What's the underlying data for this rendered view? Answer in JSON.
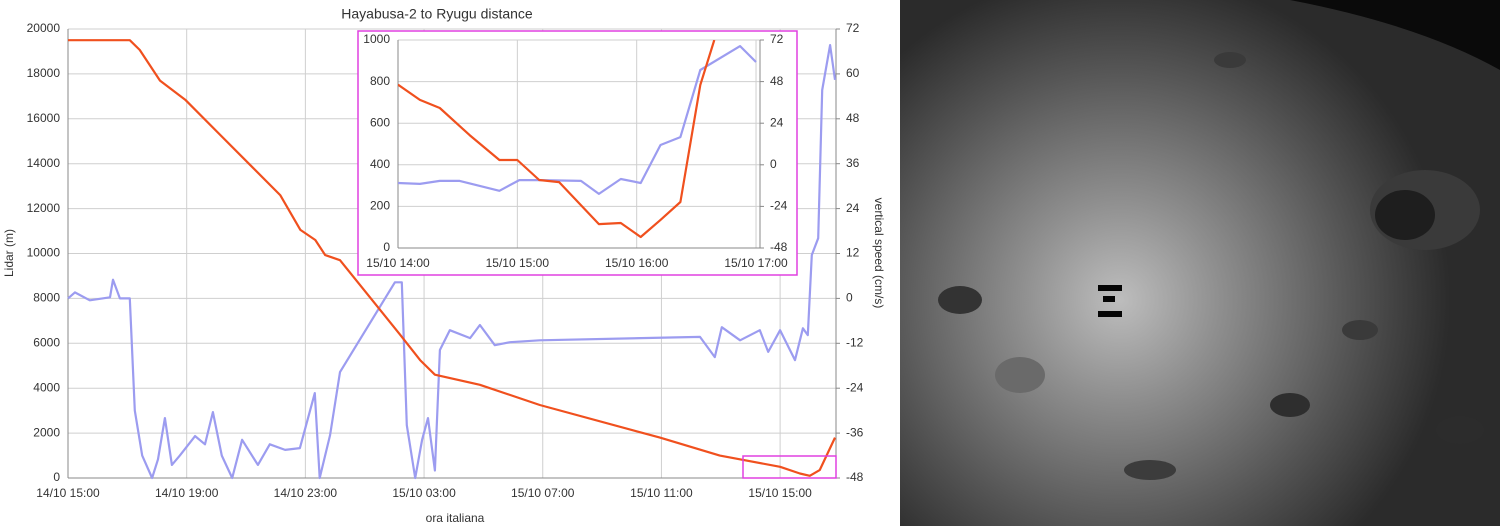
{
  "chart_data": [
    {
      "type": "line",
      "title": "Hayabusa-2 to Ryugu distance",
      "xlabel": "ora italiana",
      "ylabel": "Lidar (m)",
      "y2label": "vertical speed (cm/s)",
      "xlim": [
        "14/10 15:00",
        "15/10 16:53"
      ],
      "xticks": [
        "14/10 15:00",
        "14/10 19:00",
        "14/10 23:00",
        "15/10 03:00",
        "15/10 07:00",
        "15/10 11:00",
        "15/10 15:00"
      ],
      "ylim": [
        0,
        20000
      ],
      "yticks": [
        0,
        2000,
        4000,
        6000,
        8000,
        10000,
        12000,
        14000,
        16000,
        18000,
        20000
      ],
      "y2lim": [
        -48,
        72
      ],
      "y2ticks": [
        -48,
        -36,
        -24,
        -12,
        0,
        12,
        24,
        36,
        48,
        60,
        72
      ],
      "grid": true,
      "series": [
        {
          "color": "#f0501e",
          "x": [
            "14/10 15:00",
            "14/10 17:05",
            "14/10 17:25",
            "14/10 18:06",
            "14/10 18:57",
            "14/10 20:07",
            "14/10 21:08",
            "14/10 22:09",
            "14/10 22:50",
            "14/10 23:20",
            "14/10 23:40",
            "15/10 00:10",
            "15/10 02:11",
            "15/10 02:52",
            "15/10 03:22",
            "15/10 04:53",
            "15/10 06:54",
            "15/10 10:57",
            "15/10 12:58",
            "15/10 15:00",
            "15/10 15:40",
            "15/10 16:00",
            "15/10 16:20",
            "15/10 16:51"
          ],
          "values": [
            19500,
            19500,
            19070,
            17700,
            16850,
            15300,
            13950,
            12600,
            11050,
            10600,
            9930,
            9700,
            6400,
            5250,
            4600,
            4150,
            3250,
            1800,
            1000,
            500,
            200,
            100,
            350,
            1800
          ]
        },
        {
          "color": "#9c9cf0",
          "axis": "y2",
          "x": [
            "14/10 15:00",
            "14/10 15:14",
            "14/10 15:44",
            "14/10 16:25",
            "14/10 16:31",
            "14/10 16:45",
            "14/10 17:05",
            "14/10 17:15",
            "14/10 17:30",
            "14/10 17:50",
            "14/10 18:02",
            "14/10 18:16",
            "14/10 18:30",
            "14/10 18:46",
            "14/10 19:17",
            "14/10 19:37",
            "14/10 19:53",
            "14/10 20:11",
            "14/10 20:32",
            "14/10 20:52",
            "14/10 21:24",
            "14/10 21:48",
            "14/10 22:19",
            "14/10 22:49",
            "14/10 23:19",
            "14/10 23:29",
            "14/10 23:50",
            "15/10 00:10",
            "15/10 02:01",
            "15/10 02:15",
            "15/10 02:25",
            "15/10 02:42",
            "15/10 02:56",
            "15/10 03:08",
            "15/10 03:22",
            "15/10 03:32",
            "15/10 03:52",
            "15/10 04:33",
            "15/10 04:53",
            "15/10 05:23",
            "15/10 05:54",
            "15/10 06:54",
            "15/10 12:18",
            "15/10 12:48",
            "15/10 13:02",
            "15/10 13:39",
            "15/10 14:19",
            "15/10 14:36",
            "15/10 15:00",
            "15/10 15:30",
            "15/10 15:46",
            "15/10 15:56",
            "15/10 16:04",
            "15/10 16:17",
            "15/10 16:25",
            "15/10 16:41",
            "15/10 16:51"
          ],
          "values": [
            0,
            1.6,
            -0.5,
            0.3,
            5,
            0,
            0,
            -30,
            -42,
            -48,
            -43,
            -32,
            -44.5,
            -42,
            -36.8,
            -39,
            -30.4,
            -42,
            -48,
            -37.8,
            -44.5,
            -39,
            -40.5,
            -40,
            -25.3,
            -48,
            -36.5,
            -19.7,
            4.3,
            4.3,
            -33.9,
            -48,
            -37.8,
            -32,
            -46,
            -13.8,
            -8.5,
            -10.6,
            -7.1,
            -12.5,
            -11.7,
            -11.2,
            -10.3,
            -15.7,
            -7.7,
            -11.2,
            -8.5,
            -14.3,
            -8.5,
            -16.5,
            -8,
            -9.8,
            11.6,
            16.1,
            55.7,
            67.7,
            58.4
          ]
        }
      ]
    },
    {
      "type": "line",
      "xlim": [
        "15/10 14:00",
        "15/10 17:02"
      ],
      "xticks": [
        "15/10 14:00",
        "15/10 15:00",
        "15/10 16:00",
        "15/10 17:00"
      ],
      "ylim": [
        0,
        1000
      ],
      "yticks": [
        0,
        200,
        400,
        600,
        800,
        1000
      ],
      "y2lim": [
        -48,
        72
      ],
      "y2ticks": [
        -48,
        -24,
        0,
        24,
        48,
        72
      ],
      "grid": true,
      "series": [
        {
          "color": "#f0501e",
          "x": [
            "15/10 14:00",
            "15/10 14:11",
            "15/10 14:21",
            "15/10 14:36",
            "15/10 14:51",
            "15/10 15:00",
            "15/10 15:11",
            "15/10 15:21",
            "15/10 15:41",
            "15/10 15:52",
            "15/10 16:02",
            "15/10 16:12",
            "15/10 16:22",
            "15/10 16:32",
            "15/10 16:39"
          ],
          "values": [
            785,
            712,
            673,
            543,
            423,
            423,
            327,
            317,
            115,
            120,
            53,
            135,
            221,
            784,
            1000
          ]
        },
        {
          "color": "#9c9cf0",
          "axis": "y2",
          "x": [
            "15/10 14:00",
            "15/10 14:11",
            "15/10 14:21",
            "15/10 14:31",
            "15/10 14:51",
            "15/10 15:01",
            "15/10 15:11",
            "15/10 15:32",
            "15/10 15:41",
            "15/10 15:52",
            "15/10 16:02",
            "15/10 16:12",
            "15/10 16:22",
            "15/10 16:32",
            "15/10 16:52",
            "15/10 17:00"
          ],
          "values": [
            -10.5,
            -11,
            -9.3,
            -9.3,
            -15,
            -8.8,
            -8.8,
            -9.3,
            -16.8,
            -8.2,
            -10.5,
            11.4,
            16,
            54.7,
            68.5,
            59.3
          ]
        }
      ]
    }
  ]
}
